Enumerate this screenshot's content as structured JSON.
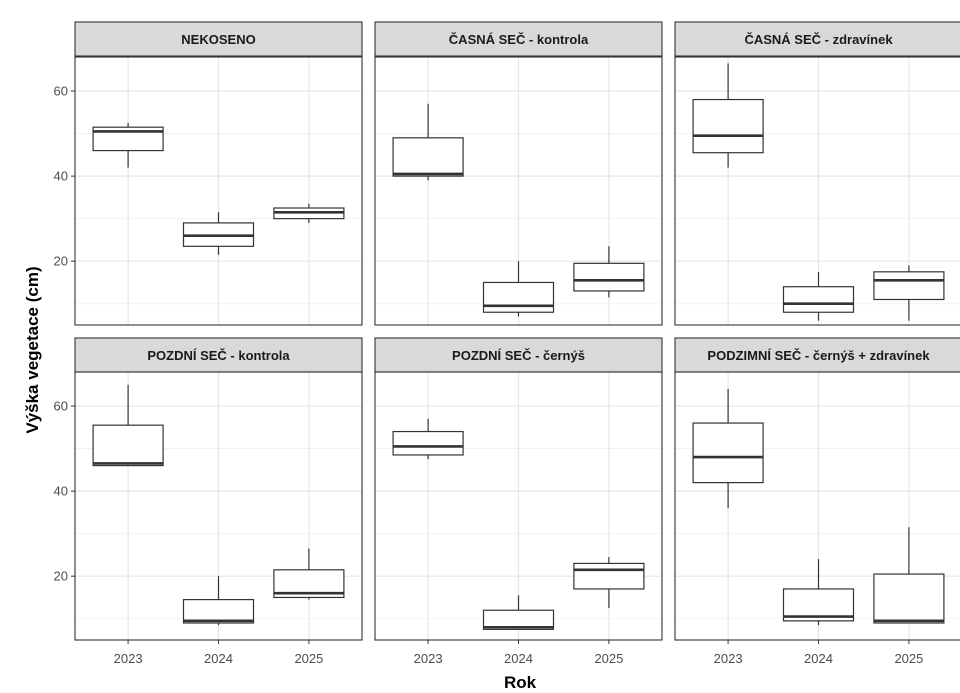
{
  "chart_data": {
    "type": "boxplot",
    "xlabel": "Rok",
    "ylabel": "Výška vegetace (cm)",
    "categories": [
      "2023",
      "2024",
      "2025"
    ],
    "y_ticks": [
      20,
      40,
      60
    ],
    "ylim": [
      5,
      68
    ],
    "grid": true,
    "panels": [
      {
        "title": "NEKOSENO",
        "boxes": [
          {
            "x": "2023",
            "whisker_low": 42,
            "q1": 46,
            "median": 50.5,
            "q3": 51.5,
            "whisker_high": 52.5
          },
          {
            "x": "2024",
            "whisker_low": 21.5,
            "q1": 23.5,
            "median": 26,
            "q3": 29,
            "whisker_high": 31.5
          },
          {
            "x": "2025",
            "whisker_low": 29,
            "q1": 30,
            "median": 31.5,
            "q3": 32.5,
            "whisker_high": 33.5
          }
        ]
      },
      {
        "title": "ČASNÁ SEČ - kontrola",
        "boxes": [
          {
            "x": "2023",
            "whisker_low": 39,
            "q1": 40,
            "median": 40.5,
            "q3": 49,
            "whisker_high": 57
          },
          {
            "x": "2024",
            "whisker_low": 7,
            "q1": 8,
            "median": 9.5,
            "q3": 15,
            "whisker_high": 20
          },
          {
            "x": "2025",
            "whisker_low": 11.5,
            "q1": 13,
            "median": 15.5,
            "q3": 19.5,
            "whisker_high": 23.5
          }
        ]
      },
      {
        "title": "ČASNÁ SEČ - zdravínek",
        "boxes": [
          {
            "x": "2023",
            "whisker_low": 42,
            "q1": 45.5,
            "median": 49.5,
            "q3": 58,
            "whisker_high": 66.5
          },
          {
            "x": "2024",
            "whisker_low": 6,
            "q1": 8,
            "median": 10,
            "q3": 14,
            "whisker_high": 17.5
          },
          {
            "x": "2025",
            "whisker_low": 6,
            "q1": 11,
            "median": 15.5,
            "q3": 17.5,
            "whisker_high": 19
          }
        ]
      },
      {
        "title": "POZDNÍ SEČ - kontrola",
        "boxes": [
          {
            "x": "2023",
            "whisker_low": 46,
            "q1": 46,
            "median": 46.5,
            "q3": 55.5,
            "whisker_high": 65
          },
          {
            "x": "2024",
            "whisker_low": 8.5,
            "q1": 9,
            "median": 9.5,
            "q3": 14.5,
            "whisker_high": 20
          },
          {
            "x": "2025",
            "whisker_low": 14.5,
            "q1": 15,
            "median": 16,
            "q3": 21.5,
            "whisker_high": 26.5
          }
        ]
      },
      {
        "title": "POZDNÍ SEČ - černýš",
        "boxes": [
          {
            "x": "2023",
            "whisker_low": 47.5,
            "q1": 48.5,
            "median": 50.5,
            "q3": 54,
            "whisker_high": 57
          },
          {
            "x": "2024",
            "whisker_low": 7.5,
            "q1": 7.5,
            "median": 8,
            "q3": 12,
            "whisker_high": 15.5
          },
          {
            "x": "2025",
            "whisker_low": 12.5,
            "q1": 17,
            "median": 21.5,
            "q3": 23,
            "whisker_high": 24.5
          }
        ]
      },
      {
        "title": "PODZIMNÍ SEČ - černýš + zdravínek",
        "boxes": [
          {
            "x": "2023",
            "whisker_low": 36,
            "q1": 42,
            "median": 48,
            "q3": 56,
            "whisker_high": 64
          },
          {
            "x": "2024",
            "whisker_low": 8.5,
            "q1": 9.5,
            "median": 10.5,
            "q3": 17,
            "whisker_high": 24
          },
          {
            "x": "2025",
            "whisker_low": 9,
            "q1": 9,
            "median": 9.5,
            "q3": 20.5,
            "whisker_high": 31.5
          }
        ]
      }
    ]
  }
}
